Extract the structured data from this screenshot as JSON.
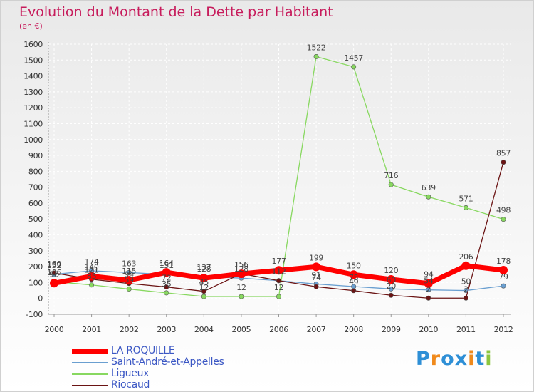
{
  "title": "Evolution du Montant de la Dette par Habitant",
  "subtitle": "(en €)",
  "logo_text": "Proxiti",
  "chart_data": {
    "type": "line",
    "x": [
      "2000",
      "2001",
      "2002",
      "2003",
      "2004",
      "2005",
      "2006",
      "2007",
      "2008",
      "2009",
      "2010",
      "2011",
      "2012"
    ],
    "ylim": [
      -100,
      1600
    ],
    "yticks": [
      -100,
      0,
      100,
      200,
      300,
      400,
      500,
      600,
      700,
      800,
      900,
      1000,
      1100,
      1200,
      1300,
      1400,
      1500,
      1600
    ],
    "grid": true,
    "legend_position": "bottom-left",
    "series": [
      {
        "name": "LA ROQUILLE",
        "color": "#ff0000",
        "values": [
          96,
          140,
          115,
          164,
          128,
          155,
          177,
          199,
          150,
          120,
          94,
          206,
          178
        ],
        "labels": true
      },
      {
        "name": "Saint-André-et-Appelles",
        "color": "#6a9fd0",
        "values": [
          152,
          174,
          163,
          151,
          137,
          128,
          112,
          91,
          75,
          60,
          54,
          50,
          79
        ],
        "labels": true
      },
      {
        "name": "Ligueux",
        "color": "#88d860",
        "values": [
          106,
          85,
          59,
          35,
          12,
          12,
          12,
          1522,
          1457,
          716,
          639,
          571,
          498
        ],
        "labels": true
      },
      {
        "name": "Riocaud",
        "color": "#6b1414",
        "values": [
          160,
          121,
          94,
          72,
          45,
          156,
          112,
          74,
          49,
          20,
          2,
          2,
          857
        ],
        "labels": true
      }
    ]
  }
}
